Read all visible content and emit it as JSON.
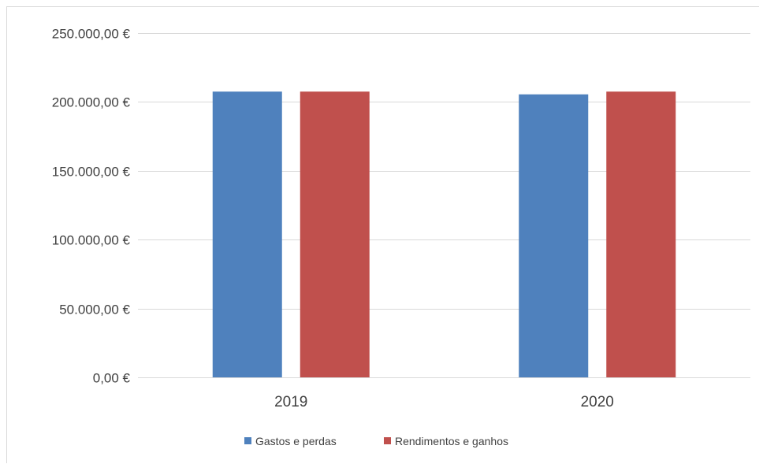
{
  "chart_data": {
    "type": "bar",
    "categories": [
      "2019",
      "2020"
    ],
    "series": [
      {
        "name": "Gastos e perdas",
        "values": [
          207500,
          205500
        ],
        "color": "#4f81bd"
      },
      {
        "name": "Rendimentos e ganhos",
        "values": [
          207500,
          207500
        ],
        "color": "#c0504d"
      }
    ],
    "ylim": [
      0,
      250000
    ],
    "yticks": [
      0,
      50000,
      100000,
      150000,
      200000,
      250000
    ],
    "ytick_labels": [
      "0,00 €",
      "50.000,00 €",
      "100.000,00 €",
      "150.000,00 €",
      "200.000,00 €",
      "250.000,00 €"
    ],
    "grid": true,
    "gridline_color": "#d9d9d9",
    "legend_position": "bottom"
  }
}
